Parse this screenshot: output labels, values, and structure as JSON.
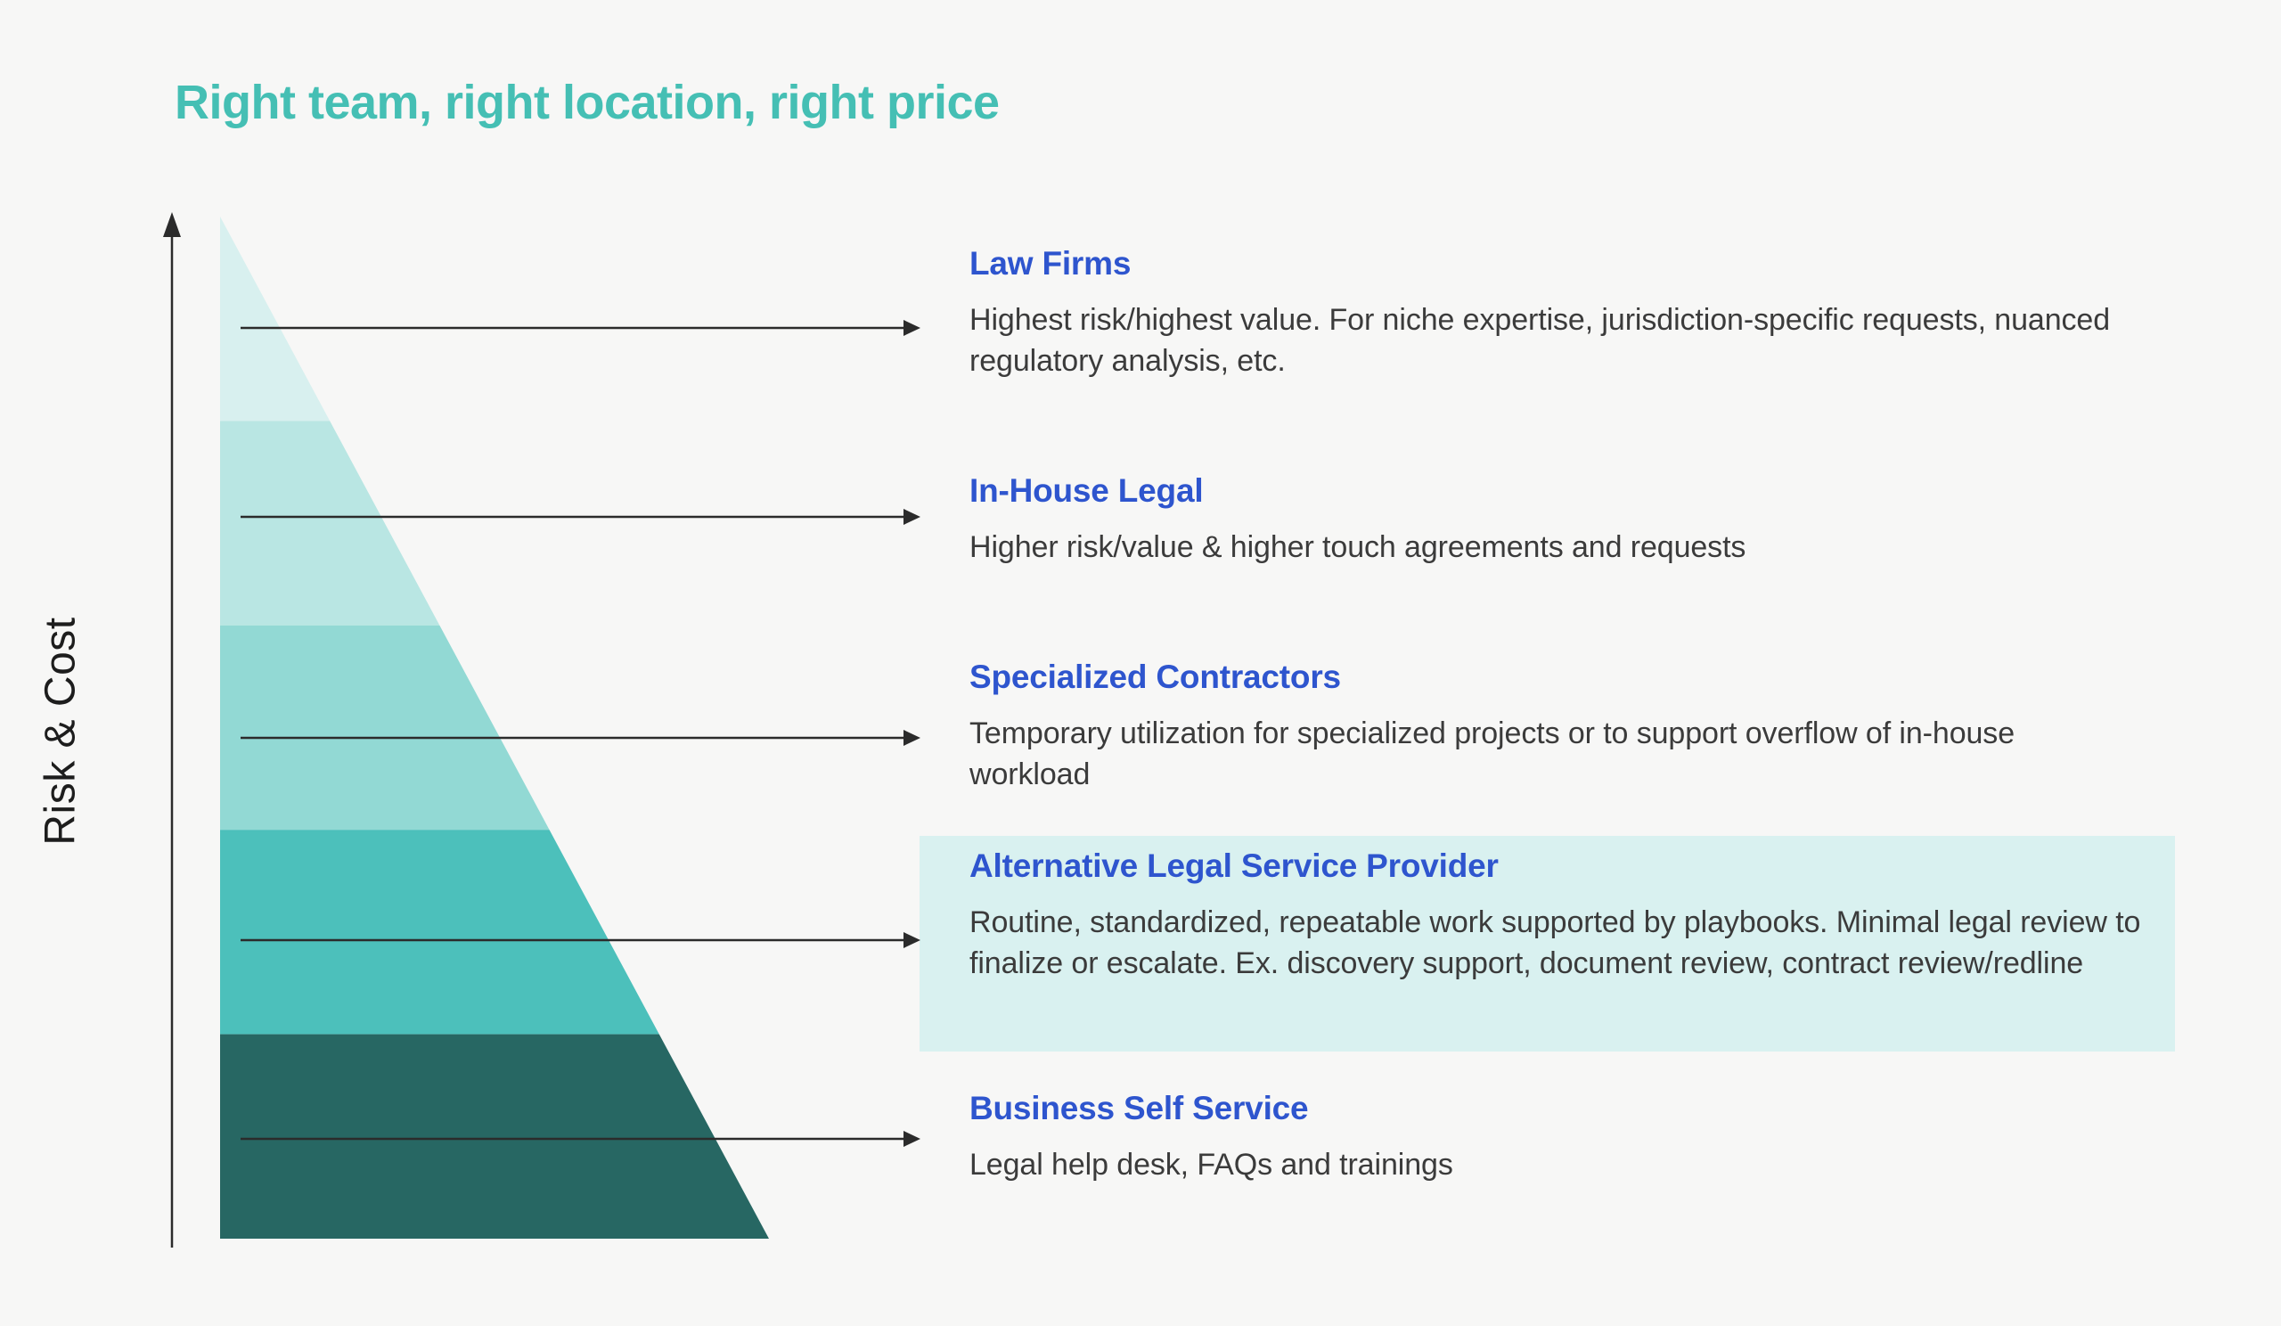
{
  "title": "Right team, right location, right price",
  "y_axis_label": "Risk & Cost",
  "colors": {
    "background": "#F7F7F6",
    "title_teal": "#45BFB4",
    "heading_blue": "#2E55CE",
    "body_text": "#3B3B3B",
    "axis_line": "#2B2B2B",
    "highlight_box": "#D9F1F0",
    "bands": [
      "#D8F0EF",
      "#B9E6E3",
      "#92D9D4",
      "#4CC0BB",
      "#276763"
    ]
  },
  "tiers": [
    {
      "name": "Law Firms",
      "description": "Highest risk/highest value. For niche expertise, jurisdiction-specific requests, nuanced regulatory analysis, etc.",
      "highlighted": false
    },
    {
      "name": "In-House Legal",
      "description": "Higher risk/value & higher touch agreements and requests",
      "highlighted": false
    },
    {
      "name": "Specialized Contractors",
      "description": "Temporary utilization for specialized projects or to support overflow of in-house workload",
      "highlighted": false
    },
    {
      "name": "Alternative Legal Service Provider",
      "description": "Routine, standardized, repeatable work supported by playbooks. Minimal legal review to finalize or escalate. Ex. discovery support, document review, contract review/redline",
      "highlighted": true
    },
    {
      "name": "Business Self Service",
      "description": "Legal help desk, FAQs and trainings",
      "highlighted": false
    }
  ]
}
